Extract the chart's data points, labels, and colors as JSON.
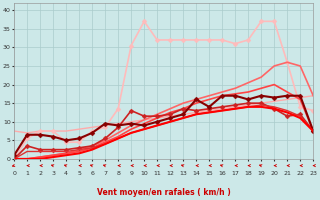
{
  "xlabel": "Vent moyen/en rafales ( km/h )",
  "xlim": [
    0,
    23
  ],
  "ylim": [
    0,
    42
  ],
  "yticks": [
    0,
    5,
    10,
    15,
    20,
    25,
    30,
    35,
    40
  ],
  "xticks": [
    0,
    1,
    2,
    3,
    4,
    5,
    6,
    7,
    8,
    9,
    10,
    11,
    12,
    13,
    14,
    15,
    16,
    17,
    18,
    19,
    20,
    21,
    22,
    23
  ],
  "bg_color": "#cce8e8",
  "grid_color": "#aacccc",
  "series": [
    {
      "x": [
        0,
        1,
        2,
        3,
        4,
        5,
        6,
        7,
        8,
        9,
        10,
        11,
        12,
        13,
        14,
        15,
        16,
        17,
        18,
        19,
        20,
        21,
        22,
        23
      ],
      "y": [
        7.5,
        7.0,
        7.5,
        7.5,
        7.5,
        8.0,
        8.5,
        9.0,
        9.5,
        10.0,
        10.5,
        11.0,
        11.5,
        12.0,
        12.5,
        13.0,
        13.5,
        14.0,
        14.5,
        15.0,
        15.5,
        16.0,
        16.5,
        17.0
      ],
      "color": "#ffaaaa",
      "lw": 1.0,
      "marker": null,
      "ms": 0
    },
    {
      "x": [
        0,
        1,
        2,
        3,
        4,
        5,
        6,
        7,
        8,
        9,
        10,
        11,
        12,
        13,
        14,
        15,
        16,
        17,
        18,
        19,
        20,
        21,
        22,
        23
      ],
      "y": [
        0,
        5.5,
        7.5,
        7.5,
        4.5,
        4.5,
        7.5,
        8.5,
        13.5,
        30.5,
        37.0,
        32.0,
        32.0,
        32.0,
        32.0,
        32.0,
        32.0,
        31.0,
        32.0,
        37.0,
        37.0,
        26.0,
        14.0,
        13.0
      ],
      "color": "#ffbbbb",
      "lw": 1.2,
      "marker": "D",
      "ms": 2.5
    },
    {
      "x": [
        0,
        1,
        2,
        3,
        4,
        5,
        6,
        7,
        8,
        9,
        10,
        11,
        12,
        13,
        14,
        15,
        16,
        17,
        18,
        19,
        20,
        21,
        22,
        23
      ],
      "y": [
        0,
        0,
        0.5,
        1.0,
        1.5,
        2.5,
        3.5,
        5.0,
        7.0,
        9.0,
        10.5,
        12.0,
        13.5,
        15.0,
        16.0,
        17.0,
        18.0,
        19.0,
        20.5,
        22.0,
        25.0,
        26.0,
        25.0,
        17.0
      ],
      "color": "#ff6666",
      "lw": 1.2,
      "marker": null,
      "ms": 0
    },
    {
      "x": [
        0,
        1,
        2,
        3,
        4,
        5,
        6,
        7,
        8,
        9,
        10,
        11,
        12,
        13,
        14,
        15,
        16,
        17,
        18,
        19,
        20,
        21,
        22,
        23
      ],
      "y": [
        0,
        0,
        0.5,
        1.0,
        1.5,
        2.0,
        3.0,
        4.5,
        6.0,
        8.0,
        9.5,
        11.0,
        12.5,
        13.5,
        15.0,
        16.0,
        17.0,
        17.5,
        18.0,
        19.0,
        20.0,
        18.0,
        16.0,
        7.5
      ],
      "color": "#ff4444",
      "lw": 1.2,
      "marker": null,
      "ms": 0
    },
    {
      "x": [
        0,
        1,
        2,
        3,
        4,
        5,
        6,
        7,
        8,
        9,
        10,
        11,
        12,
        13,
        14,
        15,
        16,
        17,
        18,
        19,
        20,
        21,
        22,
        23
      ],
      "y": [
        0,
        3.5,
        2.5,
        2.5,
        2.5,
        3.0,
        3.5,
        5.5,
        8.5,
        13.0,
        11.5,
        11.5,
        12.0,
        13.5,
        13.0,
        13.5,
        14.0,
        14.5,
        15.0,
        15.0,
        13.5,
        11.5,
        12.0,
        7.5
      ],
      "color": "#cc2222",
      "lw": 1.2,
      "marker": "D",
      "ms": 2.5
    },
    {
      "x": [
        0,
        1,
        2,
        3,
        4,
        5,
        6,
        7,
        8,
        9,
        10,
        11,
        12,
        13,
        14,
        15,
        16,
        17,
        18,
        19,
        20,
        21,
        22,
        23
      ],
      "y": [
        0,
        2.0,
        2.0,
        2.0,
        2.0,
        2.5,
        3.0,
        4.0,
        5.5,
        7.0,
        8.0,
        9.0,
        10.0,
        11.0,
        12.0,
        12.5,
        13.0,
        13.5,
        14.0,
        14.5,
        14.0,
        13.0,
        11.5,
        7.5
      ],
      "color": "#dd3333",
      "lw": 1.0,
      "marker": null,
      "ms": 0
    },
    {
      "x": [
        0,
        1,
        2,
        3,
        4,
        5,
        6,
        7,
        8,
        9,
        10,
        11,
        12,
        13,
        14,
        15,
        16,
        17,
        18,
        19,
        20,
        21,
        22,
        23
      ],
      "y": [
        1.0,
        6.5,
        6.5,
        6.0,
        5.0,
        5.5,
        7.0,
        9.5,
        9.0,
        9.5,
        9.0,
        10.0,
        11.0,
        12.0,
        16.0,
        14.0,
        17.0,
        17.0,
        16.0,
        17.0,
        16.5,
        17.0,
        17.0,
        7.5
      ],
      "color": "#880000",
      "lw": 1.5,
      "marker": "D",
      "ms": 2.5
    },
    {
      "x": [
        0,
        1,
        2,
        3,
        4,
        5,
        6,
        7,
        8,
        9,
        10,
        11,
        12,
        13,
        14,
        15,
        16,
        17,
        18,
        19,
        20,
        21,
        22,
        23
      ],
      "y": [
        0,
        0,
        0,
        0.5,
        1.0,
        1.5,
        2.5,
        4.0,
        5.5,
        7.0,
        8.0,
        9.0,
        10.0,
        11.0,
        12.0,
        12.5,
        13.0,
        13.5,
        14.0,
        14.0,
        13.5,
        12.5,
        11.0,
        7.5
      ],
      "color": "#ff0000",
      "lw": 1.5,
      "marker": null,
      "ms": 0
    }
  ],
  "wind_arrow_color": "#cc0000",
  "xlabel_color": "#cc0000"
}
